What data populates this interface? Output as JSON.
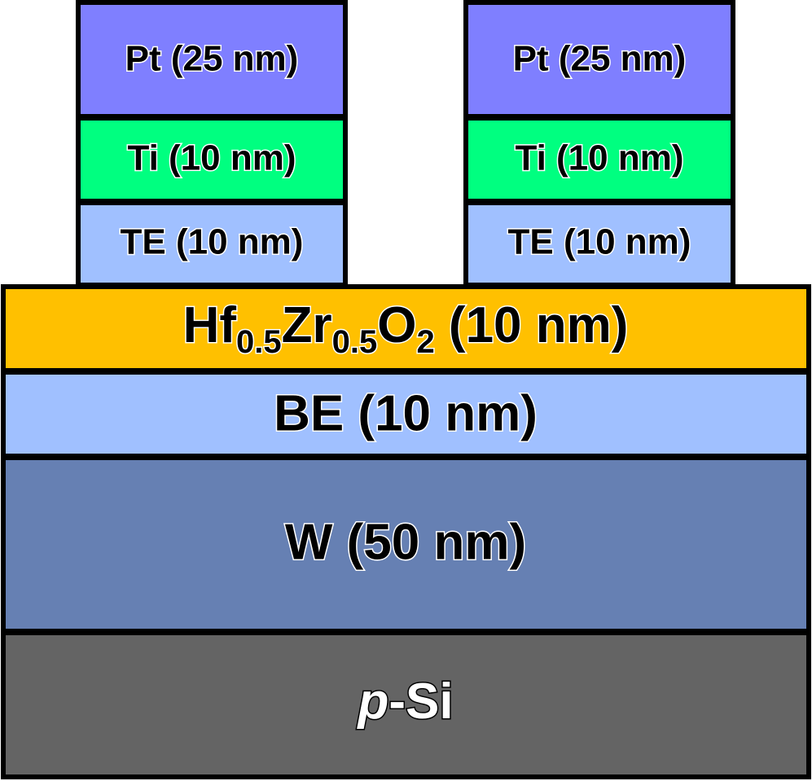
{
  "stacks": [
    {
      "layers": [
        {
          "label": "Pt (25 nm)"
        },
        {
          "label": "Ti (10 nm)"
        },
        {
          "label": "TE (10 nm)"
        }
      ]
    },
    {
      "layers": [
        {
          "label": "Pt (25 nm)"
        },
        {
          "label": "Ti (10 nm)"
        },
        {
          "label": "TE (10 nm)"
        }
      ]
    }
  ],
  "layers": [
    {
      "parts": [
        "Hf",
        "0.5",
        "Zr",
        "0.5",
        "O",
        "2",
        " (10 nm)"
      ]
    },
    {
      "label": "BE (10 nm)"
    },
    {
      "label": "W (50 nm)"
    },
    {
      "parts": [
        "p",
        "-Si"
      ]
    }
  ]
}
